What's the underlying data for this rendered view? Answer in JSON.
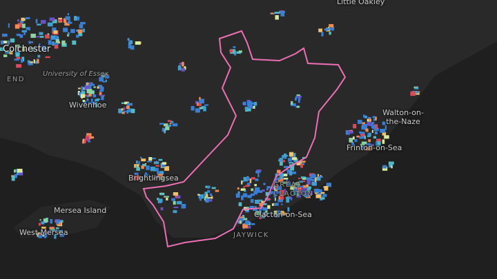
{
  "labels": {
    "little_oakley": "Little Oakley",
    "colchester": "Colchester",
    "university": "University of Essex",
    "end": "END",
    "wivenhoe": "Wivenhoe",
    "walton": "Walton-on-the-Naze",
    "frinton": "Frinton-on-Sea",
    "brightlingsea": "Brightlingsea",
    "mersea_island": "Mersea Island",
    "west_mersea": "West Mersea",
    "great_clacton": "GREAT CLACTON",
    "clacton": "Clacton-on-Sea",
    "jaywick": "JAYWICK"
  }
}
